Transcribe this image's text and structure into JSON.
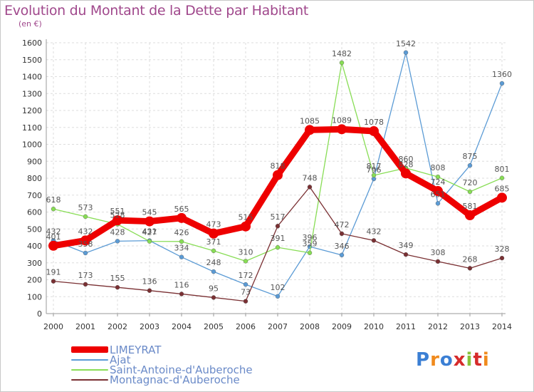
{
  "header": {
    "title": "Evolution du Montant de la Dette par Habitant",
    "subtitle": "(en €)"
  },
  "logo": {
    "text": "Proxiti"
  },
  "chart_data": {
    "type": "line",
    "title": "Evolution du Montant de la Dette par Habitant",
    "ylabel": "(en €)",
    "xlabel": "",
    "ylim": [
      0,
      1600
    ],
    "yticks": [
      0,
      100,
      200,
      300,
      400,
      500,
      600,
      700,
      800,
      900,
      1000,
      1100,
      1200,
      1300,
      1400,
      1500,
      1600
    ],
    "grid": true,
    "legend_position": "bottom-left",
    "x": [
      "2000",
      "2001",
      "2002",
      "2003",
      "2004",
      "2005",
      "2006",
      "2007",
      "2008",
      "2009",
      "2010",
      "2011",
      "2012",
      "2013",
      "2014"
    ],
    "series": [
      {
        "name": "LIMEYRAT",
        "color": "#ee0000",
        "values": [
          401,
          432,
          551,
          545,
          565,
          473,
          515,
          818,
          1085,
          1089,
          1078,
          828,
          724,
          581,
          685
        ]
      },
      {
        "name": "Ajat",
        "color": "#5b9bd5",
        "values": [
          432,
          358,
          428,
          431,
          334,
          248,
          172,
          102,
          396,
          346,
          796,
          1542,
          651,
          875,
          1360
        ]
      },
      {
        "name": "Saint-Antoine-d'Auberoche",
        "color": "#88dd55",
        "values": [
          618,
          573,
          528,
          427,
          426,
          371,
          310,
          391,
          359,
          1482,
          817,
          860,
          808,
          720,
          801
        ]
      },
      {
        "name": "Montagnac-d'Auberoche",
        "color": "#7a3033",
        "values": [
          191,
          173,
          155,
          136,
          116,
          95,
          73,
          517,
          748,
          472,
          432,
          349,
          308,
          268,
          328
        ]
      }
    ]
  }
}
